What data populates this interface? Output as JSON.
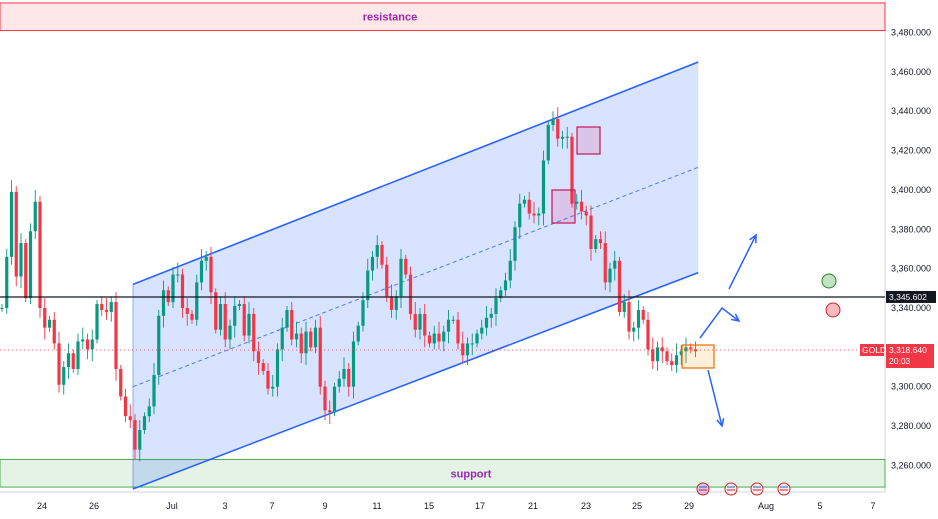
{
  "chart_data": {
    "type": "candlestick",
    "symbol": "GOLD",
    "last_price": "3,318.640",
    "countdown": "20:03",
    "marked_level": "3,345.602",
    "y_ticks": [
      "3,260.000",
      "3,280.000",
      "3,300.000",
      "3,320.000",
      "3,340.000",
      "3,360.000",
      "3,380.000",
      "3,400.000",
      "3,420.000",
      "3,440.000",
      "3,460.000",
      "3,480.000"
    ],
    "ylim": [
      3247,
      3496
    ],
    "x_ticks": [
      "24",
      "26",
      "Jul",
      "3",
      "7",
      "9",
      "11",
      "15",
      "17",
      "21",
      "23",
      "25",
      "29",
      "Aug",
      "5",
      "7"
    ],
    "zones": {
      "resistance": {
        "label": "resistance",
        "low": 3481,
        "high": 3495
      },
      "support": {
        "label": "support",
        "low": 3249,
        "high": 3263
      }
    },
    "channel": {
      "start_index": 28,
      "end_index": 147,
      "lower": [
        3248,
        3358
      ],
      "upper": [
        3352,
        3465
      ]
    },
    "series": [
      {
        "values": [
          3340,
          3366,
          3399,
          3356,
          3373,
          3345,
          3379,
          3394,
          3340,
          3330,
          3334,
          3322,
          3301,
          3310,
          3317,
          3309,
          3323,
          3324,
          3319,
          3324,
          3342,
          3339,
          3338,
          3343,
          3309,
          3295,
          3285,
          3283,
          3268,
          3278,
          3285,
          3290,
          3306,
          3336,
          3349,
          3343,
          3357,
          3357,
          3340,
          3337,
          3334,
          3353,
          3364,
          3366,
          3348,
          3329,
          3342,
          3324,
          3331,
          3341,
          3342,
          3326,
          3337,
          3318,
          3312,
          3308,
          3299,
          3300,
          3319,
          3330,
          3339,
          3324,
          3327,
          3317,
          3328,
          3320,
          3330,
          3300,
          3288,
          3287,
          3300,
          3304,
          3309,
          3300,
          3323,
          3331,
          3344,
          3359,
          3366,
          3372,
          3362,
          3346,
          3339,
          3346,
          3365,
          3357,
          3337,
          3329,
          3337,
          3326,
          3322,
          3327,
          3323,
          3328,
          3334,
          3334,
          3322,
          3316,
          3322,
          3322,
          3327,
          3330,
          3335,
          3337,
          3345,
          3349,
          3354,
          3364,
          3381,
          3393,
          3395,
          3388,
          3387,
          3388,
          3415,
          3433,
          3436,
          3426,
          3427,
          3427,
          3393,
          3394,
          3389,
          3387,
          3370,
          3375,
          3373,
          3353,
          3360,
          3364,
          3338,
          3343,
          3328,
          3330,
          3339,
          3334,
          3319,
          3313,
          3320,
          3318,
          3313,
          3311,
          3316,
          3318,
          3320,
          3319,
          3318
        ]
      }
    ],
    "annotations": {
      "rise_target": 3378,
      "drop_target": 3279,
      "sell_targets_count": 2
    }
  }
}
